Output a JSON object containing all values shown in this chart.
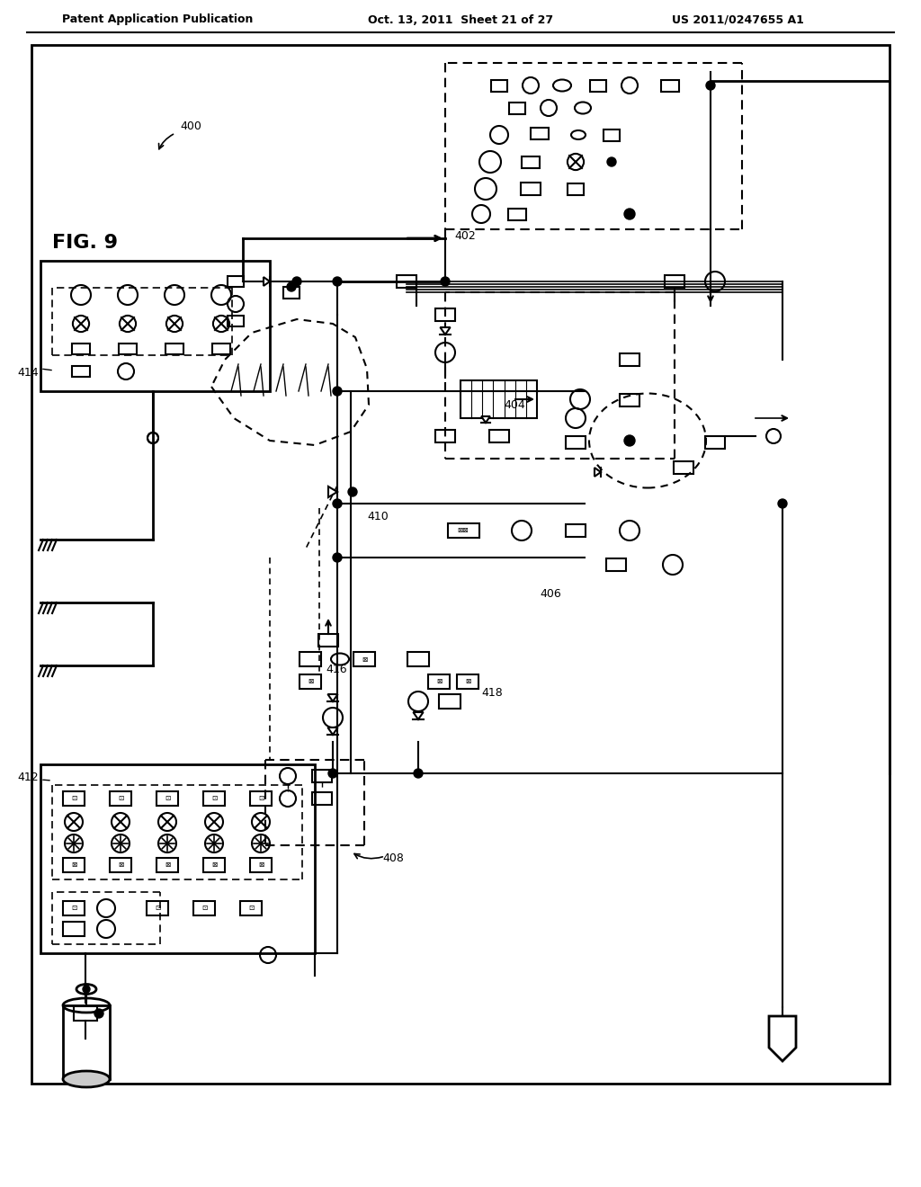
{
  "page_title_left": "Patent Application Publication",
  "page_title_mid": "Oct. 13, 2011  Sheet 21 of 27",
  "page_title_right": "US 2011/0247655 A1",
  "fig_label": "FIG. 9",
  "ref_400": "400",
  "ref_402": "402",
  "ref_404": "404",
  "ref_406": "406",
  "ref_408": "408",
  "ref_410": "410",
  "ref_412": "412",
  "ref_414": "414",
  "ref_416": "416",
  "ref_418": "418",
  "background": "#ffffff",
  "line_color": "#000000"
}
